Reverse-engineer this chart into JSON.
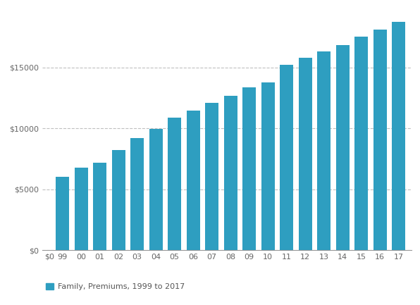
{
  "categories": [
    "99",
    "00",
    "01",
    "02",
    "03",
    "04",
    "05",
    "06",
    "07",
    "08",
    "09",
    "10",
    "11",
    "12",
    "13",
    "14",
    "15",
    "16",
    "17"
  ],
  "values": [
    6000,
    6800,
    7200,
    8200,
    9200,
    9950,
    10880,
    11480,
    12100,
    12680,
    13375,
    13770,
    15200,
    15800,
    16351,
    16834,
    17545,
    18142,
    18764
  ],
  "bar_color": "#2e9ec0",
  "background_color": "#ffffff",
  "grid_color": "#c0c0c0",
  "yticks": [
    0,
    5000,
    10000,
    15000
  ],
  "ytick_labels": [
    "$0",
    "$5000",
    "$10000",
    "$15000"
  ],
  "ylim": [
    0,
    19800
  ],
  "legend_label": "Family, Premiums, 1999 to 2017",
  "legend_color": "#2e9ec0",
  "legend_text_color": "#555555",
  "tick_label_color": "#666666",
  "axis_line_color": "#999999",
  "tick_fontsize": 8,
  "legend_fontsize": 8
}
